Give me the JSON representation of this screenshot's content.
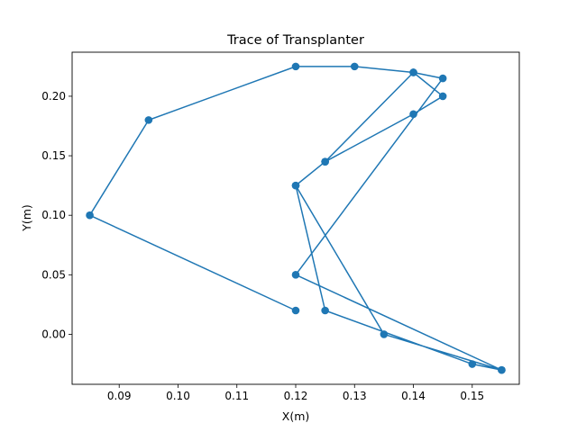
{
  "chart_data": {
    "type": "line",
    "title": "Trace of Transplanter",
    "xlabel": "X(m)",
    "ylabel": "Y(m)",
    "xlim": [
      0.082,
      0.158
    ],
    "ylim": [
      -0.042,
      0.237
    ],
    "xticks": [
      0.09,
      0.1,
      0.11,
      0.12,
      0.13,
      0.14,
      0.15
    ],
    "xtick_labels": [
      "0.09",
      "0.10",
      "0.11",
      "0.12",
      "0.13",
      "0.14",
      "0.15"
    ],
    "yticks": [
      0.0,
      0.05,
      0.1,
      0.15,
      0.2
    ],
    "ytick_labels": [
      "0.00",
      "0.05",
      "0.10",
      "0.15",
      "0.20"
    ],
    "grid": false,
    "marker": "circle",
    "color": "#1f77b4",
    "series": [
      {
        "x": [
          0.12,
          0.085,
          0.095,
          0.12,
          0.13,
          0.14,
          0.145,
          0.14,
          0.125,
          0.12,
          0.125,
          0.15,
          0.155,
          0.12,
          0.145,
          0.14,
          0.125,
          0.12,
          0.135,
          0.155
        ],
        "y": [
          0.02,
          0.1,
          0.18,
          0.225,
          0.225,
          0.22,
          0.2,
          0.185,
          0.145,
          0.125,
          0.02,
          -0.025,
          -0.03,
          0.05,
          0.215,
          0.22,
          0.145,
          0.125,
          0.0,
          -0.03
        ]
      }
    ]
  }
}
